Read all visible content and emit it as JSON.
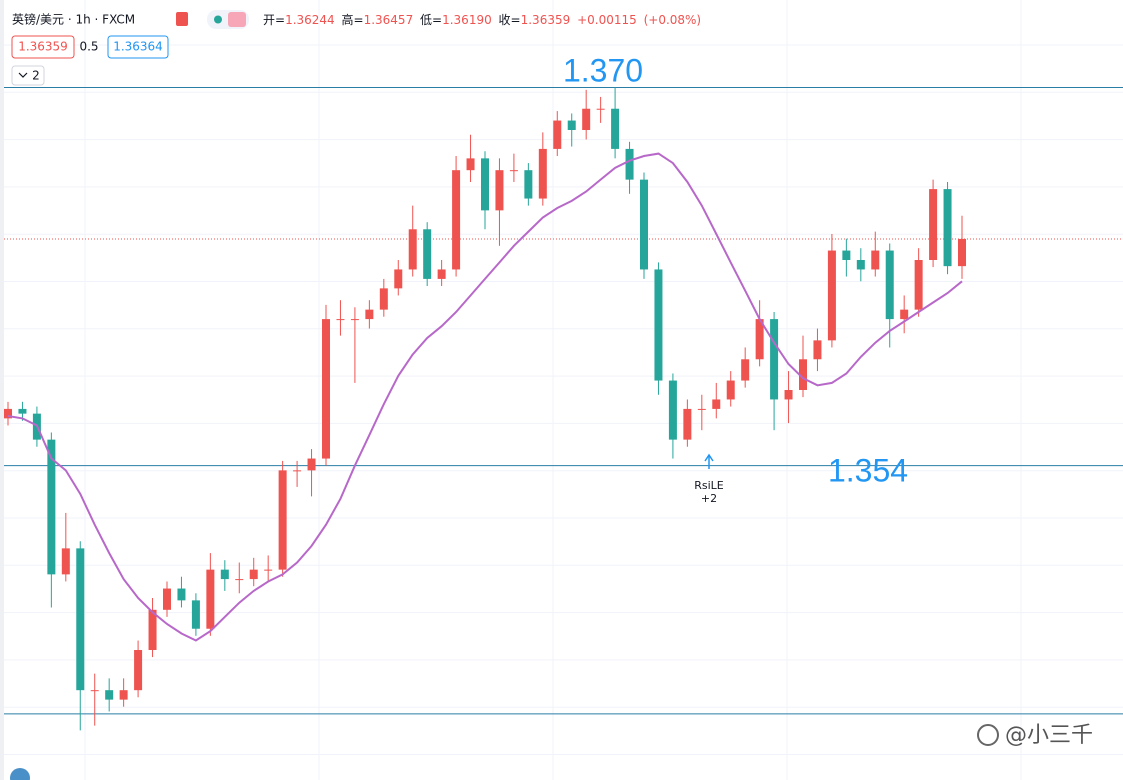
{
  "header": {
    "symbol": "英镑/美元 · 1h · FXCM",
    "ohlc_labels": [
      "开=",
      "高=",
      "低=",
      "收="
    ],
    "ohlc": [
      "1.36244",
      "1.36457",
      "1.36190",
      "1.36359"
    ],
    "change": "+0.00115",
    "change_pct": "(+0.08%)",
    "bid": "1.36359",
    "spread": "0.5",
    "ask": "1.36364",
    "indicator_count": "2"
  },
  "signal": {
    "label": "RsiLE",
    "count": "+2"
  },
  "watermark": "@小三千",
  "chart_data": {
    "type": "candlestick",
    "open": [
      1.356,
      1.3564,
      1.3562,
      1.3551,
      1.3494,
      1.3505,
      1.3445,
      1.3445,
      1.3441,
      1.3445,
      1.3462,
      1.3479,
      1.3488,
      1.3483,
      1.3471,
      1.3496,
      1.3492,
      1.3492,
      1.3496,
      1.3496,
      1.3538,
      1.3538,
      1.3543,
      1.3602,
      1.3602,
      1.3602,
      1.3606,
      1.3615,
      1.3623,
      1.364,
      1.3619,
      1.3623,
      1.3665,
      1.367,
      1.3648,
      1.3665,
      1.3665,
      1.3653,
      1.3674,
      1.3686,
      1.3682,
      1.3691,
      1.3691,
      1.3674,
      1.3661,
      1.3623,
      1.3576,
      1.3551,
      1.3564,
      1.3564,
      1.3568,
      1.3576,
      1.3585,
      1.3602,
      1.3568,
      1.3572,
      1.3585,
      1.3593,
      1.3631,
      1.3627,
      1.3623,
      1.3631,
      1.3602,
      1.3606,
      1.3627,
      1.3657,
      1.36244
    ],
    "high": [
      1.3567,
      1.3567,
      1.3565,
      1.3554,
      1.352,
      1.3508,
      1.3452,
      1.345,
      1.345,
      1.3466,
      1.3484,
      1.3491,
      1.3493,
      1.3486,
      1.3503,
      1.35,
      1.3499,
      1.3501,
      1.3502,
      1.3542,
      1.3542,
      1.3547,
      1.3608,
      1.361,
      1.3607,
      1.361,
      1.3619,
      1.3627,
      1.365,
      1.3643,
      1.3627,
      1.3671,
      1.368,
      1.3673,
      1.367,
      1.3672,
      1.3668,
      1.3681,
      1.369,
      1.3689,
      1.3699,
      1.3696,
      1.37,
      1.3677,
      1.3664,
      1.3626,
      1.3579,
      1.3568,
      1.357,
      1.3575,
      1.358,
      1.359,
      1.361,
      1.3605,
      1.358,
      1.3595,
      1.3598,
      1.3638,
      1.3636,
      1.3632,
      1.3639,
      1.3634,
      1.3612,
      1.3632,
      1.3661,
      1.366,
      1.36457
    ],
    "low": [
      1.3557,
      1.3559,
      1.3548,
      1.348,
      1.3491,
      1.3428,
      1.343,
      1.3436,
      1.3438,
      1.3442,
      1.3459,
      1.3476,
      1.348,
      1.3468,
      1.3468,
      1.3487,
      1.3486,
      1.3489,
      1.3491,
      1.3493,
      1.3531,
      1.3527,
      1.354,
      1.3595,
      1.3575,
      1.3598,
      1.3603,
      1.3612,
      1.362,
      1.3616,
      1.3616,
      1.362,
      1.366,
      1.364,
      1.3633,
      1.366,
      1.365,
      1.365,
      1.3671,
      1.3675,
      1.3678,
      1.3685,
      1.367,
      1.3655,
      1.3619,
      1.357,
      1.3543,
      1.3548,
      1.3555,
      1.356,
      1.3565,
      1.3573,
      1.3582,
      1.3555,
      1.3558,
      1.3569,
      1.358,
      1.359,
      1.362,
      1.3618,
      1.362,
      1.359,
      1.3596,
      1.3603,
      1.3624,
      1.3621,
      1.3619
    ],
    "close": [
      1.3564,
      1.3562,
      1.3551,
      1.3494,
      1.3505,
      1.3445,
      1.3445,
      1.3441,
      1.3445,
      1.3462,
      1.3479,
      1.3488,
      1.3483,
      1.3471,
      1.3496,
      1.3492,
      1.3492,
      1.3496,
      1.3496,
      1.3538,
      1.3538,
      1.3543,
      1.3602,
      1.3602,
      1.3602,
      1.3606,
      1.3615,
      1.3623,
      1.364,
      1.3619,
      1.3623,
      1.3665,
      1.367,
      1.3648,
      1.3665,
      1.3665,
      1.3653,
      1.3674,
      1.3686,
      1.3682,
      1.3691,
      1.3691,
      1.3674,
      1.3661,
      1.3623,
      1.3576,
      1.3551,
      1.3564,
      1.3564,
      1.3568,
      1.3576,
      1.3585,
      1.3602,
      1.3568,
      1.3572,
      1.3585,
      1.3593,
      1.3631,
      1.3627,
      1.3623,
      1.3631,
      1.3602,
      1.3606,
      1.3627,
      1.3657,
      1.36244,
      1.36359
    ],
    "ma": {
      "color": "#b768c9",
      "values": [
        1.3561,
        1.356,
        1.3557,
        1.3543,
        1.3538,
        1.3528,
        1.3515,
        1.3503,
        1.3492,
        1.3484,
        1.3478,
        1.3473,
        1.3469,
        1.3466,
        1.347,
        1.3476,
        1.3482,
        1.3487,
        1.3491,
        1.3494,
        1.3499,
        1.3506,
        1.3515,
        1.3526,
        1.354,
        1.3553,
        1.3566,
        1.3578,
        1.3587,
        1.3594,
        1.3599,
        1.3605,
        1.3612,
        1.3619,
        1.3626,
        1.3633,
        1.3639,
        1.3645,
        1.3649,
        1.3652,
        1.3656,
        1.3661,
        1.3666,
        1.3669,
        1.3671,
        1.3672,
        1.3668,
        1.366,
        1.365,
        1.3638,
        1.3626,
        1.3614,
        1.3602,
        1.3592,
        1.3583,
        1.3577,
        1.3574,
        1.3575,
        1.3579,
        1.3586,
        1.3592,
        1.3597,
        1.3601,
        1.3605,
        1.3609,
        1.3613,
        1.3618
      ]
    },
    "up_color": "#ef5350",
    "down_color": "#26a69a",
    "ylim": [
      1.3407,
      1.3737
    ],
    "levels": [
      {
        "value": 1.37,
        "label": "1.370"
      },
      {
        "value": 1.354,
        "label": "1.354"
      },
      1.3435
    ],
    "level_color": "#2a7ea6",
    "last_price_line": true
  }
}
